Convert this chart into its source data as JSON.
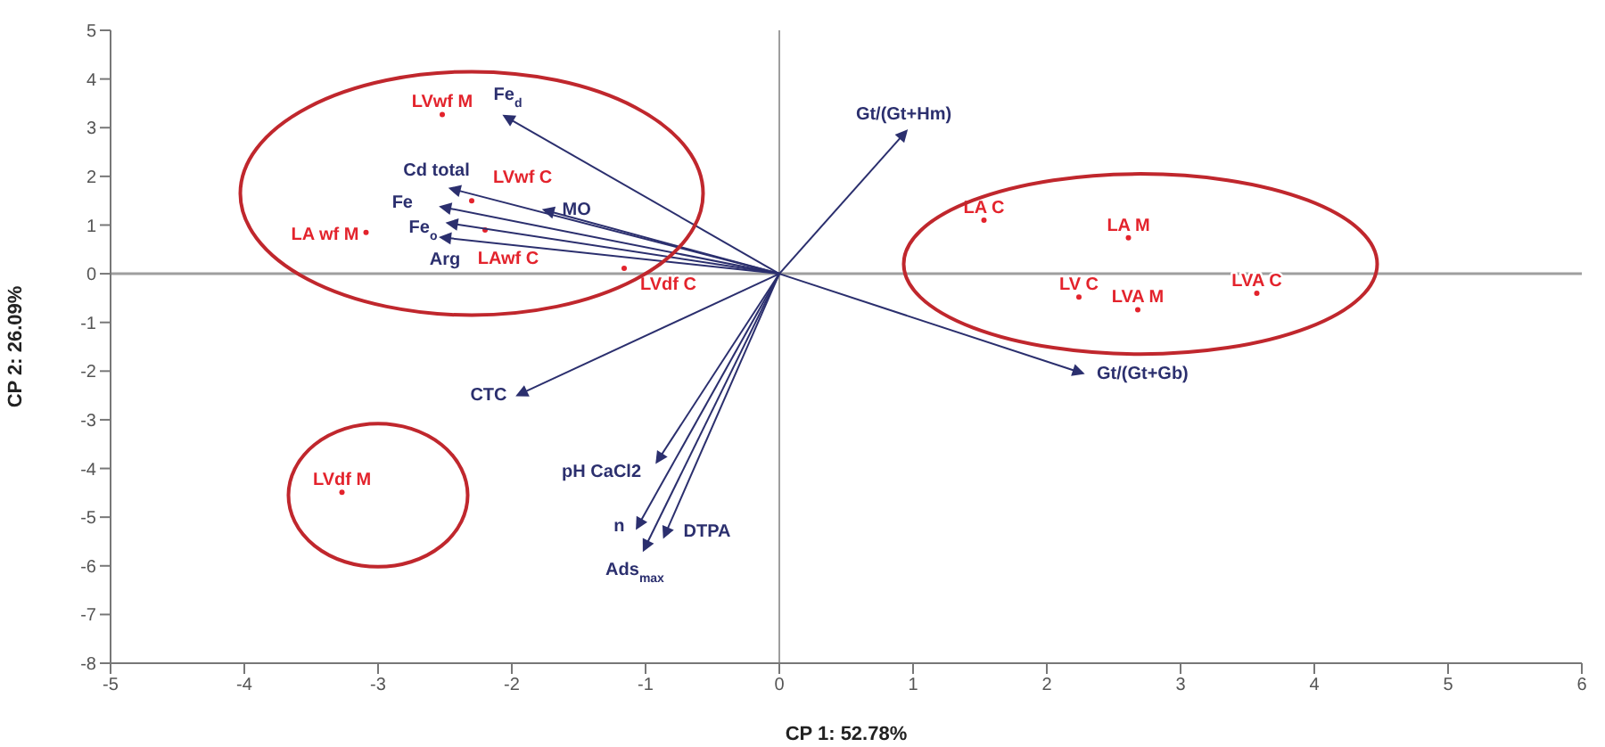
{
  "chart_data": {
    "type": "scatter",
    "xlabel": "CP 1: 52.78%",
    "ylabel": "CP 2: 26.09%",
    "xlim": [
      -5,
      6
    ],
    "ylim": [
      -8,
      5
    ],
    "xticks": [
      -5,
      -4,
      -3,
      -2,
      -1,
      0,
      1,
      2,
      3,
      4,
      5,
      6
    ],
    "yticks": [
      -8,
      -7,
      -6,
      -5,
      -4,
      -3,
      -2,
      -1,
      0,
      1,
      2,
      3,
      4,
      5
    ],
    "grid": false,
    "ref_lines": [
      {
        "axis": "x",
        "value": 0,
        "color": "#9e9e9e"
      },
      {
        "axis": "y",
        "value": 0,
        "color": "#9e9e9e"
      }
    ],
    "series": [
      {
        "marker": "circle",
        "color": "#e3232c",
        "x": [
          -2.52,
          -2.3,
          -3.09,
          -2.2,
          -1.16,
          1.53,
          2.61,
          2.24,
          2.68,
          3.57,
          -3.27
        ],
        "values": [
          3.27,
          1.5,
          0.85,
          0.9,
          0.11,
          1.1,
          0.74,
          -0.48,
          -0.74,
          -0.4,
          -4.49
        ],
        "value_labels": [
          "LVwf M",
          "LVwf C",
          "LA wf M",
          "LAwf C",
          "LVdf C",
          "LA C",
          "LA M",
          "LV C",
          "LVA M",
          "LVA C",
          "LVdf M"
        ]
      },
      {
        "marker": "triangle",
        "color": "#2b2f6e",
        "x": [
          -2.03,
          -2.43,
          -1.73,
          -2.5,
          -2.45,
          -2.5,
          0.93,
          2.24,
          -1.93,
          -0.9,
          -1.05,
          -1.0,
          -0.85
        ],
        "values": [
          3.2,
          1.73,
          1.29,
          1.36,
          1.03,
          0.74,
          2.87,
          -2.02,
          -2.46,
          -3.8,
          -5.15,
          -5.6,
          -5.33
        ],
        "value_labels": [
          "Fe$_{d}$",
          "Cd total",
          "MO",
          "Fe",
          "Fe$_{o}$",
          "Arg",
          "Gt/(Gt+Hm)",
          "Gt/(Gt+Gb)",
          "CTC",
          "pH CaCl2",
          "n",
          "Ads$_{max}$",
          "DTPA"
        ]
      }
    ]
  }
}
